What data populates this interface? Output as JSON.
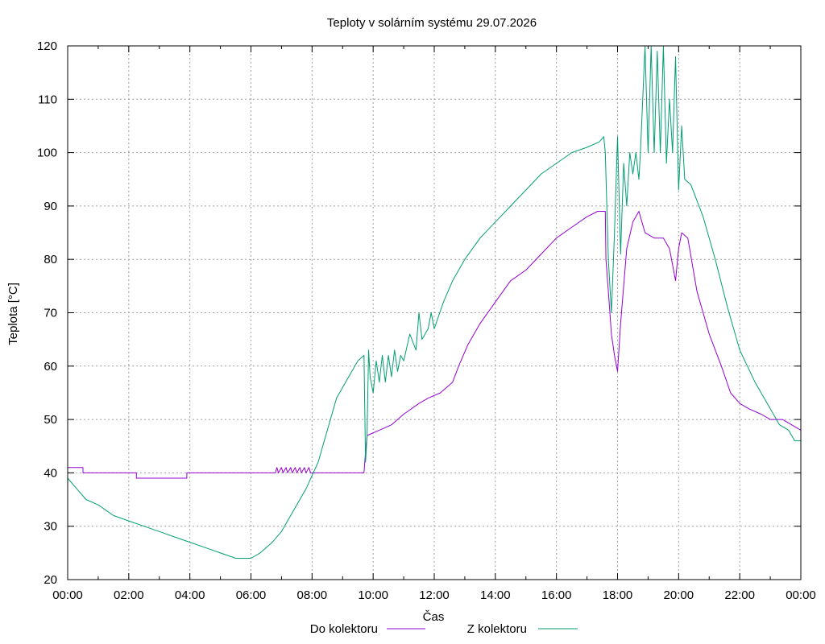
{
  "chart_data": {
    "type": "line",
    "title": "Teploty v solárním systému 29.07.2026",
    "xlabel": "Čas",
    "ylabel": "Teplota [°C]",
    "ylim": [
      20,
      120
    ],
    "xlim_hours": [
      0,
      24
    ],
    "grid": true,
    "legend_position": "bottom",
    "yticks": [
      20,
      30,
      40,
      50,
      60,
      70,
      80,
      90,
      100,
      110,
      120
    ],
    "xticks": [
      {
        "h": 0,
        "label": "00:00"
      },
      {
        "h": 2,
        "label": "02:00"
      },
      {
        "h": 4,
        "label": "04:00"
      },
      {
        "h": 6,
        "label": "06:00"
      },
      {
        "h": 8,
        "label": "08:00"
      },
      {
        "h": 10,
        "label": "10:00"
      },
      {
        "h": 12,
        "label": "12:00"
      },
      {
        "h": 14,
        "label": "14:00"
      },
      {
        "h": 16,
        "label": "16:00"
      },
      {
        "h": 18,
        "label": "18:00"
      },
      {
        "h": 20,
        "label": "20:00"
      },
      {
        "h": 22,
        "label": "22:00"
      },
      {
        "h": 24,
        "label": "00:00"
      }
    ],
    "series": [
      {
        "name": "Do kolektoru",
        "color": "#9400d3",
        "points": [
          [
            0.0,
            41
          ],
          [
            0.5,
            41
          ],
          [
            0.5,
            40
          ],
          [
            2.25,
            40
          ],
          [
            2.25,
            39
          ],
          [
            3.9,
            39
          ],
          [
            3.9,
            40
          ],
          [
            6.8,
            40
          ],
          [
            6.85,
            41
          ],
          [
            6.9,
            40
          ],
          [
            7.0,
            41
          ],
          [
            7.05,
            40
          ],
          [
            7.15,
            41
          ],
          [
            7.2,
            40
          ],
          [
            7.3,
            41
          ],
          [
            7.35,
            40
          ],
          [
            7.45,
            41
          ],
          [
            7.5,
            40
          ],
          [
            7.6,
            41
          ],
          [
            7.65,
            40
          ],
          [
            7.75,
            41
          ],
          [
            7.8,
            40
          ],
          [
            7.9,
            41
          ],
          [
            7.95,
            40
          ],
          [
            8.0,
            40
          ],
          [
            9.7,
            40
          ],
          [
            9.75,
            44
          ],
          [
            9.8,
            47
          ],
          [
            10.2,
            48
          ],
          [
            10.6,
            49
          ],
          [
            11.0,
            51
          ],
          [
            11.5,
            53
          ],
          [
            11.8,
            54
          ],
          [
            12.2,
            55
          ],
          [
            12.6,
            57
          ],
          [
            12.8,
            60
          ],
          [
            13.1,
            64
          ],
          [
            13.5,
            68
          ],
          [
            14.0,
            72
          ],
          [
            14.5,
            76
          ],
          [
            15.0,
            78
          ],
          [
            15.5,
            81
          ],
          [
            16.0,
            84
          ],
          [
            16.5,
            86
          ],
          [
            17.0,
            88
          ],
          [
            17.35,
            89
          ],
          [
            17.6,
            89
          ],
          [
            17.62,
            80
          ],
          [
            17.7,
            74
          ],
          [
            17.8,
            66
          ],
          [
            17.9,
            62
          ],
          [
            18.0,
            59
          ],
          [
            18.1,
            68
          ],
          [
            18.3,
            82
          ],
          [
            18.5,
            87
          ],
          [
            18.7,
            89
          ],
          [
            18.9,
            85
          ],
          [
            19.2,
            84
          ],
          [
            19.5,
            84
          ],
          [
            19.7,
            82
          ],
          [
            19.9,
            76
          ],
          [
            20.0,
            82
          ],
          [
            20.1,
            85
          ],
          [
            20.3,
            84
          ],
          [
            20.6,
            74
          ],
          [
            21.0,
            66
          ],
          [
            21.4,
            60
          ],
          [
            21.7,
            55
          ],
          [
            22.0,
            53
          ],
          [
            22.3,
            52
          ],
          [
            22.7,
            51
          ],
          [
            23.0,
            50
          ],
          [
            23.4,
            50
          ],
          [
            23.7,
            49
          ],
          [
            24.0,
            48
          ]
        ]
      },
      {
        "name": "Z kolektoru",
        "color": "#009e73",
        "points": [
          [
            0.0,
            39
          ],
          [
            0.3,
            37
          ],
          [
            0.6,
            35
          ],
          [
            1.0,
            34
          ],
          [
            1.5,
            32
          ],
          [
            2.0,
            31
          ],
          [
            2.5,
            30
          ],
          [
            3.0,
            29
          ],
          [
            3.5,
            28
          ],
          [
            4.0,
            27
          ],
          [
            4.5,
            26
          ],
          [
            5.0,
            25
          ],
          [
            5.5,
            24
          ],
          [
            6.0,
            24
          ],
          [
            6.3,
            25
          ],
          [
            6.7,
            27
          ],
          [
            7.0,
            29
          ],
          [
            7.4,
            33
          ],
          [
            7.8,
            37
          ],
          [
            8.2,
            42
          ],
          [
            8.5,
            48
          ],
          [
            8.8,
            54
          ],
          [
            9.2,
            58
          ],
          [
            9.5,
            61
          ],
          [
            9.7,
            62
          ],
          [
            9.75,
            42
          ],
          [
            9.8,
            47
          ],
          [
            9.85,
            63
          ],
          [
            9.9,
            58
          ],
          [
            10.0,
            55
          ],
          [
            10.1,
            61
          ],
          [
            10.2,
            57
          ],
          [
            10.3,
            62
          ],
          [
            10.4,
            57
          ],
          [
            10.5,
            62
          ],
          [
            10.6,
            58
          ],
          [
            10.7,
            63
          ],
          [
            10.8,
            59
          ],
          [
            10.9,
            62
          ],
          [
            11.0,
            61
          ],
          [
            11.2,
            66
          ],
          [
            11.4,
            63
          ],
          [
            11.5,
            70
          ],
          [
            11.6,
            65
          ],
          [
            11.8,
            67
          ],
          [
            11.9,
            70
          ],
          [
            12.0,
            67
          ],
          [
            12.3,
            72
          ],
          [
            12.6,
            76
          ],
          [
            13.0,
            80
          ],
          [
            13.5,
            84
          ],
          [
            14.0,
            87
          ],
          [
            14.5,
            90
          ],
          [
            15.0,
            93
          ],
          [
            15.5,
            96
          ],
          [
            16.0,
            98
          ],
          [
            16.5,
            100
          ],
          [
            17.0,
            101
          ],
          [
            17.4,
            102
          ],
          [
            17.55,
            103
          ],
          [
            17.6,
            100
          ],
          [
            17.7,
            80
          ],
          [
            17.8,
            70
          ],
          [
            17.9,
            85
          ],
          [
            18.0,
            103
          ],
          [
            18.1,
            81
          ],
          [
            18.2,
            98
          ],
          [
            18.3,
            90
          ],
          [
            18.4,
            100
          ],
          [
            18.5,
            96
          ],
          [
            18.6,
            100
          ],
          [
            18.7,
            95
          ],
          [
            18.75,
            100
          ],
          [
            18.9,
            120
          ],
          [
            19.0,
            100
          ],
          [
            19.1,
            120
          ],
          [
            19.2,
            100
          ],
          [
            19.3,
            119
          ],
          [
            19.4,
            100
          ],
          [
            19.5,
            120
          ],
          [
            19.6,
            98
          ],
          [
            19.7,
            110
          ],
          [
            19.8,
            100
          ],
          [
            19.9,
            118
          ],
          [
            20.0,
            93
          ],
          [
            20.1,
            105
          ],
          [
            20.2,
            95
          ],
          [
            20.4,
            94
          ],
          [
            20.8,
            88
          ],
          [
            21.2,
            80
          ],
          [
            21.6,
            71
          ],
          [
            22.0,
            63
          ],
          [
            22.5,
            57
          ],
          [
            23.0,
            52
          ],
          [
            23.3,
            49
          ],
          [
            23.6,
            48
          ],
          [
            23.8,
            46
          ],
          [
            24.0,
            46
          ]
        ]
      }
    ]
  }
}
